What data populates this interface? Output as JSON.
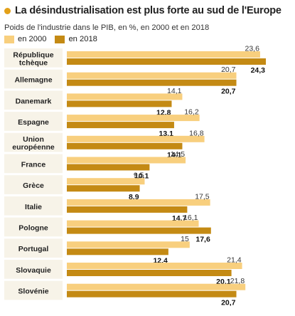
{
  "title": "La désindustrialisation est plus forte au sud de l'Europe",
  "subtitle": "Poids de l'industrie dans le PIB, en %, en 2000 et en 2018",
  "colors": {
    "accent": "#E3A018",
    "series_2000": "#F8CF7E",
    "series_2018": "#C48A14",
    "category_bg": "#F7F3E8"
  },
  "chart_data": {
    "type": "bar",
    "orientation": "horizontal",
    "title": "La désindustrialisation est plus forte au sud de l'Europe",
    "subtitle": "Poids de l'industrie dans le PIB, en %, en 2000 et en 2018",
    "categories": [
      [
        "République",
        "tchèque"
      ],
      [
        "Allemagne"
      ],
      [
        "Danemark"
      ],
      [
        "Espagne"
      ],
      [
        "Union",
        "européenne"
      ],
      [
        "France"
      ],
      [
        "Grèce"
      ],
      [
        "Italie"
      ],
      [
        "Pologne"
      ],
      [
        "Portugal"
      ],
      [
        "Slovaquie"
      ],
      [
        "Slovénie"
      ]
    ],
    "series": [
      {
        "name": "en 2000",
        "color": "#F8CF7E",
        "values": [
          23.6,
          20.7,
          14.1,
          16.2,
          16.8,
          14.5,
          9.5,
          17.5,
          16.1,
          15,
          21.4,
          21.8
        ],
        "labels": [
          "23,6",
          "20,7",
          "14,1",
          "16,2",
          "16,8",
          "14,5",
          "9,5",
          "17,5",
          "16,1",
          "15",
          "21,4",
          "21,8"
        ]
      },
      {
        "name": "en 2018",
        "color": "#C48A14",
        "values": [
          24.3,
          20.7,
          12.8,
          13.1,
          14.1,
          10.1,
          8.9,
          14.7,
          17.6,
          12.4,
          20.1,
          20.7
        ],
        "labels": [
          "24,3",
          "20,7",
          "12,8",
          "13,1",
          "14,1",
          "10,1",
          "8,9",
          "14,7",
          "17,6",
          "12,4",
          "20,1",
          "20,7"
        ]
      }
    ],
    "xlim": [
      0,
      24.3
    ],
    "legend_position": "top-left",
    "grid": false
  }
}
